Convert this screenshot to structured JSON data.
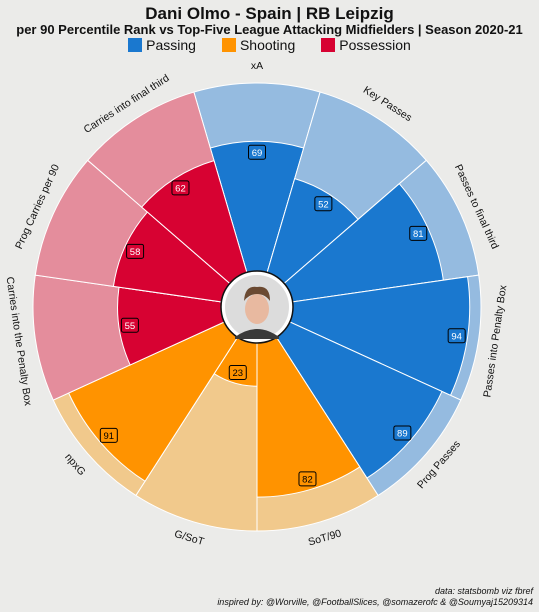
{
  "title": "Dani Olmo - Spain | RB Leipzig",
  "subtitle": "per 90 Percentile Rank vs Top-Five League Attacking Midfielders | Season 2020-21",
  "legend": [
    {
      "label": "Passing",
      "color": "#1a78cf"
    },
    {
      "label": "Shooting",
      "color": "#ff9300"
    },
    {
      "label": "Possession",
      "color": "#d70232"
    }
  ],
  "footer": {
    "line1": "data: statsbomb viz fbref",
    "line2": "inspired by: @Worville, @FootballSlices, @somazerofc & @Soumyaj15209314"
  },
  "chart_data": {
    "type": "polar-bar",
    "title": "Dani Olmo - Spain | RB Leipzig",
    "subtitle": "per 90 Percentile Rank vs Top-Five League Attacking Midfielders | Season 2020-21",
    "rlim": [
      0,
      100
    ],
    "categories": [
      "xA",
      "Key Passes",
      "Passes to final third",
      "Passes into Penalty Box",
      "Prog Passes",
      "SoT/90",
      "G/SoT",
      "npxG",
      "Carries into the Penalty Box",
      "Prog Carries per 90",
      "Carries into final third"
    ],
    "values": [
      69,
      52,
      81,
      94,
      89,
      82,
      23,
      91,
      55,
      58,
      62
    ],
    "groups": [
      "Passing",
      "Passing",
      "Passing",
      "Passing",
      "Passing",
      "Shooting",
      "Shooting",
      "Shooting",
      "Possession",
      "Possession",
      "Possession"
    ],
    "series_colors": {
      "Passing": "#1a78cf",
      "Shooting": "#ff9300",
      "Possession": "#d70232"
    },
    "background_colors": {
      "Passing": "#95bbe0",
      "Shooting": "#f1c98c",
      "Possession": "#e48d9c"
    }
  }
}
